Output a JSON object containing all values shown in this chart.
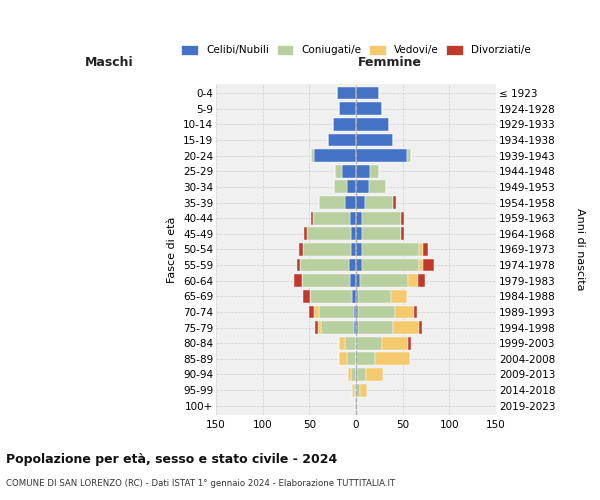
{
  "age_groups": [
    "0-4",
    "5-9",
    "10-14",
    "15-19",
    "20-24",
    "25-29",
    "30-34",
    "35-39",
    "40-44",
    "45-49",
    "50-54",
    "55-59",
    "60-64",
    "65-69",
    "70-74",
    "75-79",
    "80-84",
    "85-89",
    "90-94",
    "95-99",
    "100+"
  ],
  "birth_years": [
    "2019-2023",
    "2014-2018",
    "2009-2013",
    "2004-2008",
    "1999-2003",
    "1994-1998",
    "1989-1993",
    "1984-1988",
    "1979-1983",
    "1974-1978",
    "1969-1973",
    "1964-1968",
    "1959-1963",
    "1954-1958",
    "1949-1953",
    "1944-1948",
    "1939-1943",
    "1934-1938",
    "1929-1933",
    "1924-1928",
    "≤ 1923"
  ],
  "male_celibi": [
    20,
    18,
    25,
    30,
    45,
    15,
    10,
    12,
    6,
    5,
    5,
    8,
    6,
    4,
    2,
    2,
    0,
    0,
    0,
    0,
    1
  ],
  "male_coniugati": [
    0,
    0,
    0,
    0,
    3,
    8,
    14,
    28,
    40,
    48,
    52,
    52,
    52,
    45,
    38,
    35,
    12,
    10,
    5,
    2,
    0
  ],
  "male_vedovi": [
    0,
    0,
    0,
    0,
    0,
    0,
    0,
    0,
    0,
    0,
    0,
    0,
    0,
    0,
    5,
    4,
    6,
    8,
    4,
    2,
    0
  ],
  "male_divorziati": [
    0,
    0,
    0,
    0,
    0,
    0,
    0,
    0,
    2,
    3,
    4,
    3,
    8,
    8,
    5,
    3,
    0,
    0,
    0,
    0,
    0
  ],
  "fem_nubili": [
    25,
    28,
    35,
    40,
    55,
    15,
    14,
    10,
    6,
    6,
    6,
    6,
    4,
    2,
    2,
    2,
    0,
    0,
    1,
    0,
    1
  ],
  "fem_coniugate": [
    0,
    0,
    0,
    0,
    4,
    10,
    18,
    30,
    42,
    42,
    62,
    62,
    52,
    35,
    40,
    38,
    28,
    20,
    10,
    4,
    0
  ],
  "fem_vedove": [
    0,
    0,
    0,
    0,
    0,
    0,
    0,
    0,
    0,
    0,
    4,
    4,
    10,
    18,
    20,
    28,
    28,
    38,
    18,
    8,
    0
  ],
  "fem_divorziate": [
    0,
    0,
    0,
    0,
    0,
    0,
    0,
    3,
    3,
    3,
    5,
    12,
    8,
    0,
    3,
    3,
    3,
    0,
    0,
    0,
    0
  ],
  "colors": {
    "celibi": "#4472c4",
    "coniugati": "#b8cfa0",
    "vedovi": "#f5c96e",
    "divorziati": "#c0392b"
  },
  "title": "Popolazione per età, sesso e stato civile - 2024",
  "subtitle": "COMUNE DI SAN LORENZO (RC) - Dati ISTAT 1° gennaio 2024 - Elaborazione TUTTITALIA.IT",
  "ylabel_left": "Fasce di età",
  "ylabel_right": "Anni di nascita",
  "xlim": 150,
  "bg_color": "#f0f0f0",
  "grid_color": "#cccccc"
}
